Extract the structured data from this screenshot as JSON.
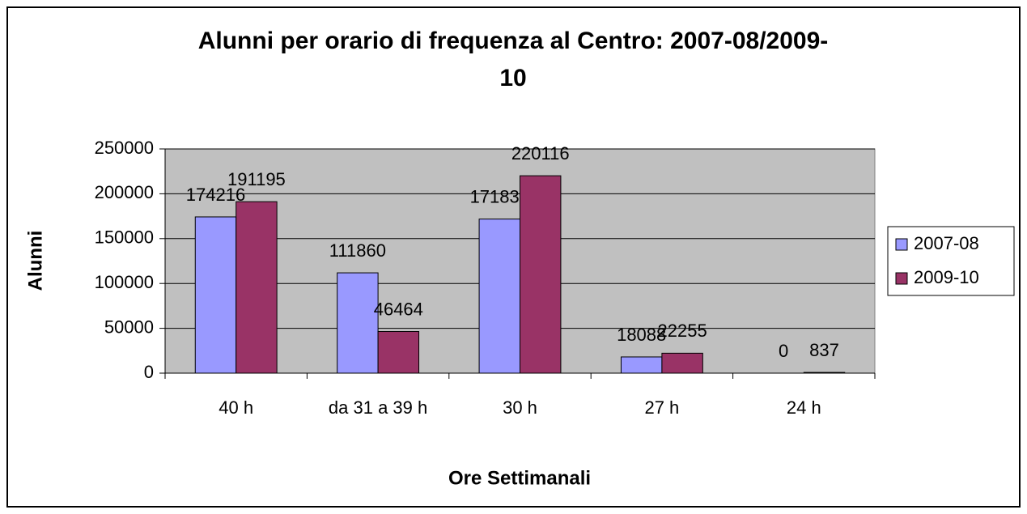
{
  "chart_data": {
    "type": "bar",
    "title": "Alunni per orario di frequenza al Centro: 2007-08/2009-10",
    "x_label": "Ore Settimanali",
    "y_label": "Alunni",
    "categories": [
      "40 h",
      "da 31 a 39 h",
      "30 h",
      "27 h",
      "24 h"
    ],
    "series": [
      {
        "name": "2007-08",
        "color": "#9999ff",
        "values": [
          174216,
          111860,
          171836,
          18088,
          0
        ]
      },
      {
        "name": "2009-10",
        "color": "#993366",
        "values": [
          191195,
          46464,
          220116,
          22255,
          837
        ]
      }
    ],
    "ylim": [
      0,
      250000
    ],
    "yticks": [
      0,
      50000,
      100000,
      150000,
      200000,
      250000
    ],
    "grid": true,
    "legend": "right"
  }
}
